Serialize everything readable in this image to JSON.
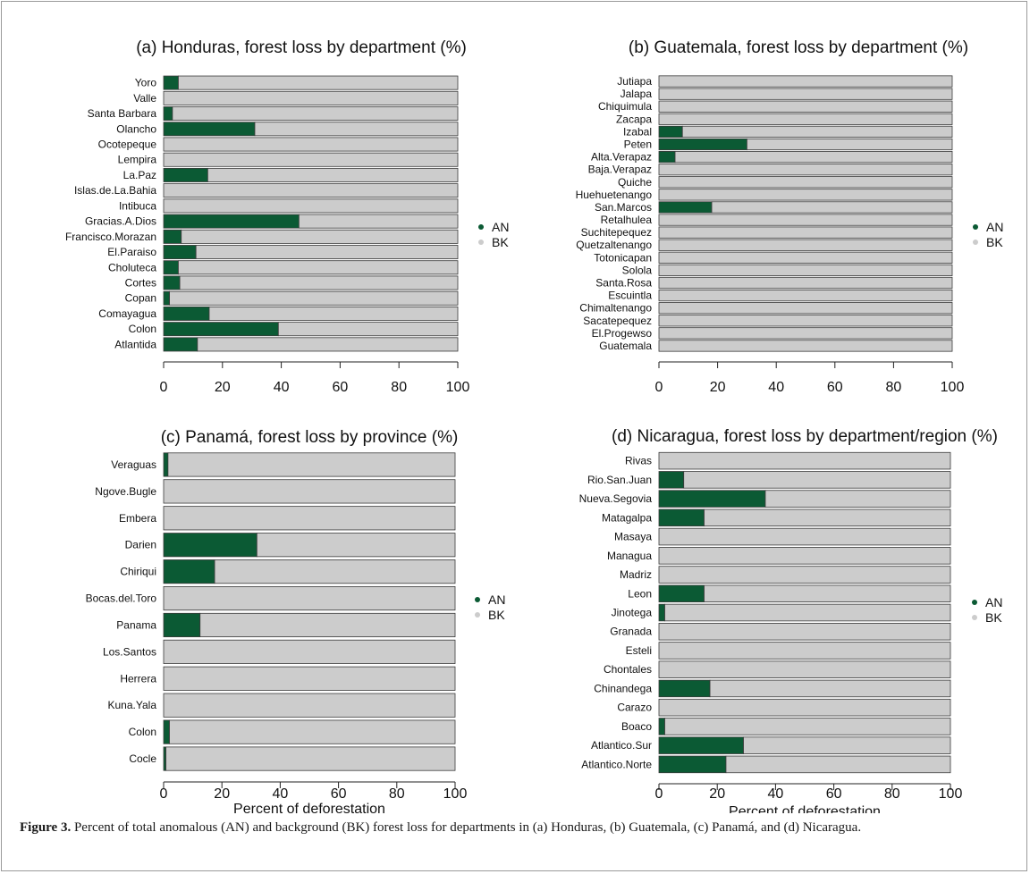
{
  "figure": {
    "caption_label": "Figure 3.",
    "caption_text": "Percent of total anomalous (AN) and background (BK) forest loss for departments in (a) Honduras, (b) Guatemala, (c) Panamá, and (d) Nicaragua."
  },
  "colors": {
    "an": "#0b5a34",
    "bk": "#cccccc",
    "axis": "#222222",
    "bar_edge": "#3a3a3a"
  },
  "chart_data": [
    {
      "type": "bar",
      "orientation": "horizontal",
      "stacked": true,
      "title": "(a) Honduras, forest loss by department (%)",
      "xlabel": "",
      "xlim": [
        0,
        100
      ],
      "xticks": [
        0,
        20,
        40,
        60,
        80,
        100
      ],
      "legend": [
        "AN",
        "BK"
      ],
      "legend_position": "right",
      "categories": [
        "Yoro",
        "Valle",
        "Santa Barbara",
        "Olancho",
        "Ocotepeque",
        "Lempira",
        "La.Paz",
        "Islas.de.La.Bahia",
        "Intibuca",
        "Gracias.A.Dios",
        "Francisco.Morazan",
        "El.Paraiso",
        "Choluteca",
        "Cortes",
        "Copan",
        "Comayagua",
        "Colon",
        "Atlantida"
      ],
      "series": [
        {
          "name": "AN",
          "values": [
            5,
            0,
            3,
            31,
            0,
            0,
            15,
            0,
            0,
            46,
            6,
            11,
            5,
            5.5,
            2,
            15.5,
            39,
            11.5
          ]
        },
        {
          "name": "BK",
          "values": [
            95,
            100,
            97,
            69,
            100,
            100,
            85,
            100,
            100,
            54,
            94,
            89,
            95,
            94.5,
            98,
            84.5,
            61,
            88.5
          ]
        }
      ]
    },
    {
      "type": "bar",
      "orientation": "horizontal",
      "stacked": true,
      "title": "(b) Guatemala, forest loss by department (%)",
      "xlabel": "",
      "xlim": [
        0,
        100
      ],
      "xticks": [
        0,
        20,
        40,
        60,
        80,
        100
      ],
      "legend": [
        "AN",
        "BK"
      ],
      "legend_position": "right",
      "categories": [
        "Jutiapa",
        "Jalapa",
        "Chiquimula",
        "Zacapa",
        "Izabal",
        "Peten",
        "Alta.Verapaz",
        "Baja.Verapaz",
        "Quiche",
        "Huehuetenango",
        "San.Marcos",
        "Retalhulea",
        "Suchitepequez",
        "Quetzaltenango",
        "Totonicapan",
        "Solola",
        "Santa.Rosa",
        "Escuintla",
        "Chimaltenango",
        "Sacatepequez",
        "El.Progewso",
        "Guatemala"
      ],
      "series": [
        {
          "name": "AN",
          "values": [
            0,
            0,
            0,
            0,
            8,
            30,
            5.5,
            0,
            0,
            0,
            18,
            0,
            0,
            0,
            0,
            0,
            0,
            0,
            0,
            0,
            0,
            0
          ]
        },
        {
          "name": "BK",
          "values": [
            100,
            100,
            100,
            100,
            92,
            70,
            94.5,
            100,
            100,
            100,
            82,
            100,
            100,
            100,
            100,
            100,
            100,
            100,
            100,
            100,
            100,
            100
          ]
        }
      ]
    },
    {
      "type": "bar",
      "orientation": "horizontal",
      "stacked": true,
      "title": "(c) Panamá, forest loss by province (%)",
      "xlabel": "Percent of deforestation",
      "xlim": [
        0,
        100
      ],
      "xticks": [
        0,
        20,
        40,
        60,
        80,
        100
      ],
      "legend": [
        "AN",
        "BK"
      ],
      "legend_position": "right",
      "categories": [
        "Veraguas",
        "Ngove.Bugle",
        "Embera",
        "Darien",
        "Chiriqui",
        "Bocas.del.Toro",
        "Panama",
        "Los.Santos",
        "Herrera",
        "Kuna.Yala",
        "Colon",
        "Cocle"
      ],
      "series": [
        {
          "name": "AN",
          "values": [
            1.5,
            0,
            0,
            32,
            17.5,
            0,
            12.5,
            0,
            0,
            0,
            2,
            0.8
          ]
        },
        {
          "name": "BK",
          "values": [
            98.5,
            100,
            100,
            68,
            82.5,
            100,
            87.5,
            100,
            100,
            100,
            98,
            99.2
          ]
        }
      ]
    },
    {
      "type": "bar",
      "orientation": "horizontal",
      "stacked": true,
      "title": "(d) Nicaragua, forest loss by department/region (%)",
      "xlabel": "Percent of deforestation",
      "xlim": [
        0,
        100
      ],
      "xticks": [
        0,
        20,
        40,
        60,
        80,
        100
      ],
      "legend": [
        "AN",
        "BK"
      ],
      "legend_position": "right",
      "categories": [
        "Rivas",
        "Rio.San.Juan",
        "Nueva.Segovia",
        "Matagalpa",
        "Masaya",
        "Managua",
        "Madriz",
        "Leon",
        "Jinotega",
        "Granada",
        "Esteli",
        "Chontales",
        "Chinandega",
        "Carazo",
        "Boaco",
        "Atlantico.Sur",
        "Atlantico.Norte"
      ],
      "series": [
        {
          "name": "AN",
          "values": [
            0,
            8.5,
            36.5,
            15.5,
            0,
            0,
            0,
            15.5,
            2,
            0,
            0,
            0,
            17.5,
            0,
            2,
            29,
            23
          ]
        },
        {
          "name": "BK",
          "values": [
            100,
            91.5,
            63.5,
            84.5,
            100,
            100,
            100,
            84.5,
            98,
            100,
            100,
            100,
            82.5,
            100,
            98,
            71,
            77
          ]
        }
      ]
    }
  ]
}
